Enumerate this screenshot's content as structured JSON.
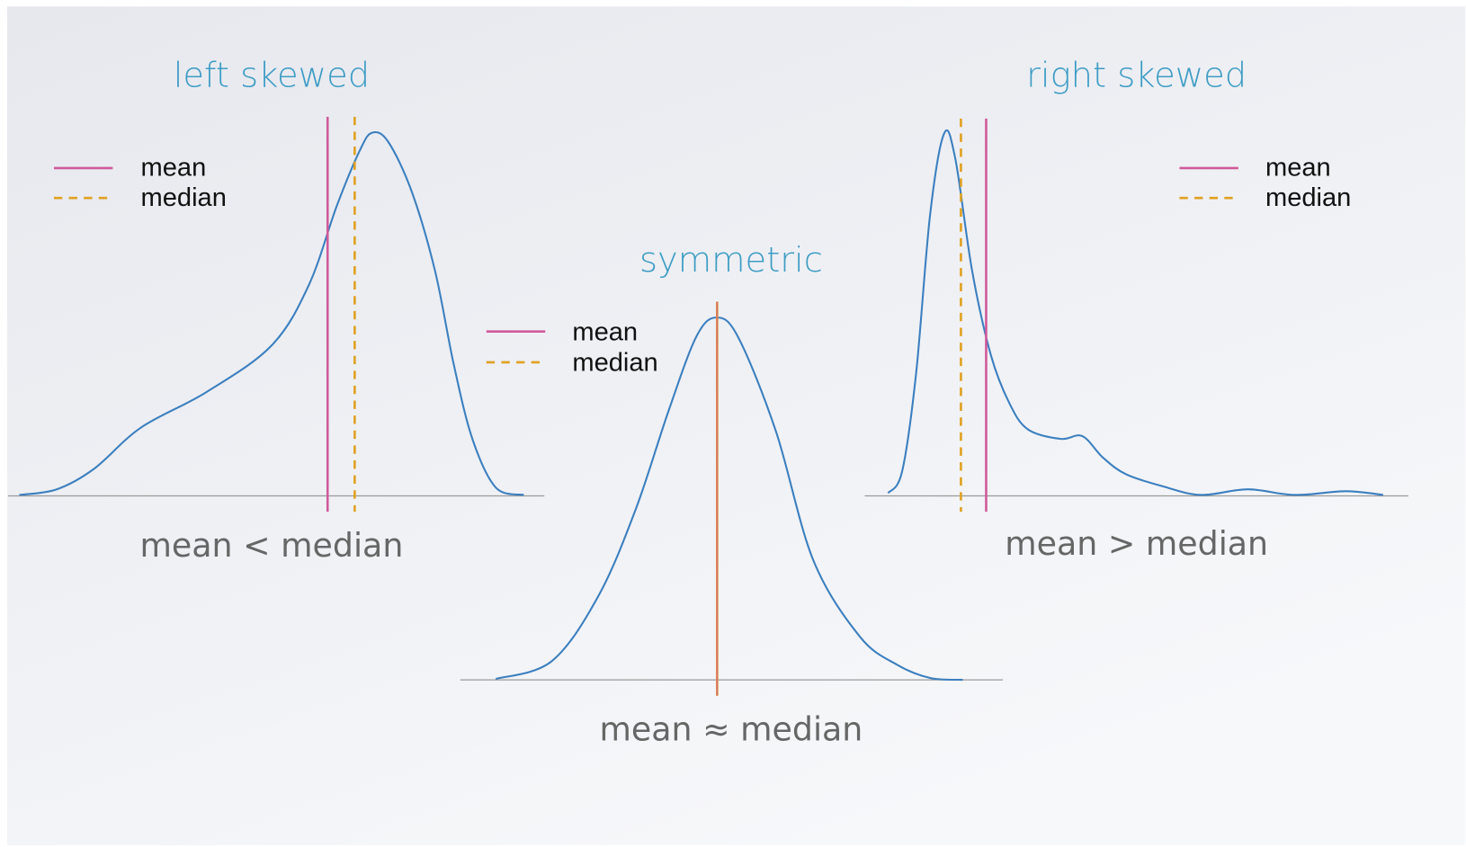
{
  "panels": [
    {
      "title": "left skewed",
      "legend": [
        "mean",
        "median"
      ],
      "caption": "mean < median"
    },
    {
      "title": "symmetric",
      "legend": [
        "mean",
        "median"
      ],
      "caption": "mean ≈ median"
    },
    {
      "title": "right skewed",
      "legend": [
        "mean",
        "median"
      ],
      "caption": "mean > median"
    }
  ]
}
